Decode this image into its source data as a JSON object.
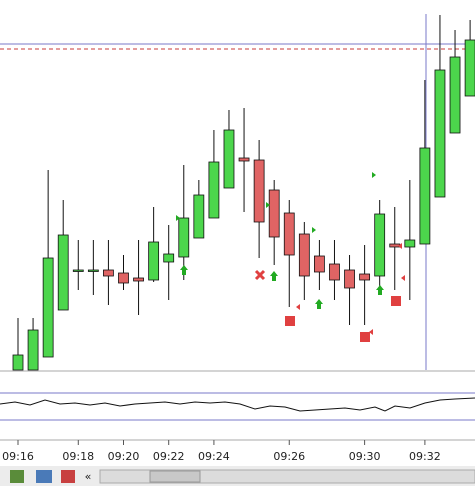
{
  "chart_data": {
    "type": "candlestick",
    "categories": [
      "09:16",
      null,
      null,
      null,
      "09:18",
      null,
      null,
      "09:20",
      null,
      null,
      "09:22",
      null,
      null,
      "09:24",
      null,
      null,
      null,
      null,
      "09:26",
      null,
      null,
      null,
      null,
      "09:30",
      null,
      null,
      null,
      "09:32",
      null,
      null,
      null
    ],
    "open": [
      0,
      0,
      13,
      60,
      99,
      100,
      100,
      97,
      92,
      90,
      108,
      113,
      132,
      152,
      182,
      212,
      210,
      180,
      157,
      136,
      114,
      106,
      100,
      96,
      94,
      126,
      123,
      126,
      173,
      237,
      274
    ],
    "high": [
      52,
      52,
      200,
      170,
      130,
      130,
      130,
      115,
      130,
      163,
      145,
      205,
      190,
      240,
      260,
      262,
      230,
      190,
      170,
      148,
      130,
      130,
      115,
      125,
      170,
      163,
      190,
      290,
      355,
      340,
      350
    ],
    "low": [
      0,
      0,
      13,
      60,
      80,
      75,
      65,
      80,
      55,
      88,
      70,
      90,
      132,
      152,
      182,
      158,
      112,
      105,
      63,
      70,
      80,
      70,
      45,
      45,
      80,
      80,
      70,
      126,
      173,
      237,
      274
    ],
    "close": [
      15,
      40,
      112,
      135,
      100,
      100,
      94,
      87,
      89,
      128,
      116,
      152,
      175,
      208,
      240,
      209,
      148,
      133,
      115,
      94,
      98,
      90,
      82,
      90,
      156,
      123,
      130,
      222,
      300,
      313,
      330
    ],
    "up_color": "#4cd64c",
    "down_color": "#e06464",
    "ylim": [
      0,
      370
    ]
  },
  "toolbar": {
    "scroll_left": "«"
  }
}
